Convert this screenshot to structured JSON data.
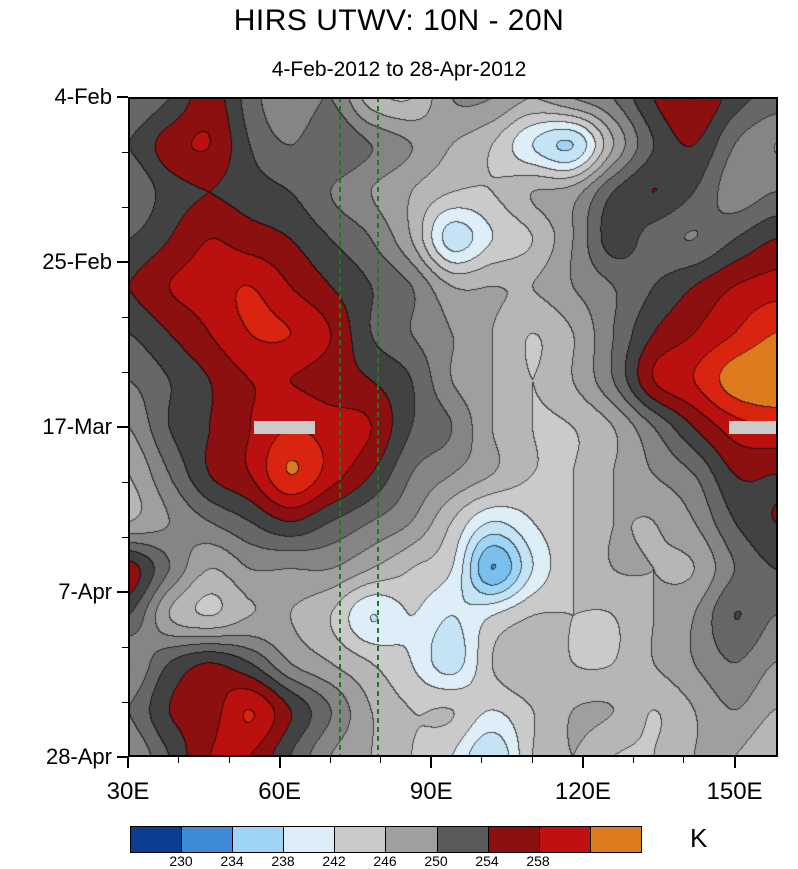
{
  "title": "HIRS UTWV: 10N - 20N",
  "subtitle": "4-Feb-2012 to 28-Apr-2012",
  "unit_label": "K",
  "chart_data": {
    "type": "heatmap",
    "description": "Hovmoller diagram (time vs longitude) of HIRS upper-tropospheric water vapor brightness temperature (K) averaged 10N-20N",
    "x_axis": {
      "tick_labels": [
        "30E",
        "60E",
        "90E",
        "120E",
        "150E"
      ],
      "tick_values": [
        30,
        60,
        90,
        120,
        150
      ],
      "minor_tick_values": [
        40,
        50,
        70,
        80,
        100,
        110,
        130,
        140
      ],
      "range": [
        30,
        158.6
      ]
    },
    "y_axis": {
      "tick_labels": [
        "4-Feb",
        "25-Feb",
        "17-Mar",
        "7-Apr",
        "28-Apr"
      ],
      "tick_days": [
        0,
        21,
        42,
        63,
        84
      ],
      "minor_tick_days": [
        7,
        14,
        28,
        35,
        49,
        56,
        70,
        77
      ],
      "range_days": [
        0,
        84
      ]
    },
    "grid": {
      "lon_start": 30,
      "lon_step": 8,
      "day_start": 0,
      "day_step": 6,
      "values": [
        [
          250,
          252,
          255,
          251,
          248,
          250,
          245,
          244,
          248,
          248,
          246,
          248,
          250,
          254,
          256,
          253,
          251
        ],
        [
          252,
          255,
          256,
          252,
          250,
          252,
          250,
          248,
          246,
          244,
          240,
          238,
          246,
          252,
          254,
          250,
          248
        ],
        [
          250,
          253,
          254,
          253,
          252,
          250,
          248,
          246,
          244,
          244,
          246,
          247,
          252,
          254,
          252,
          249,
          250
        ],
        [
          252,
          254,
          256,
          255,
          254,
          252,
          250,
          246,
          239,
          242,
          244,
          248,
          253,
          251,
          250,
          252,
          254
        ],
        [
          254,
          256,
          257,
          258,
          256,
          254,
          252,
          250,
          246,
          246,
          246,
          248,
          250,
          252,
          254,
          256,
          257
        ],
        [
          252,
          254,
          256,
          258,
          258,
          256,
          252,
          250,
          248,
          246,
          244,
          246,
          250,
          254,
          256,
          258,
          260
        ],
        [
          250,
          252,
          254,
          256,
          256,
          255,
          254,
          252,
          248,
          246,
          244,
          246,
          250,
          256,
          258,
          261,
          262
        ],
        [
          248,
          252,
          254,
          256,
          258,
          257,
          256,
          252,
          250,
          246,
          244,
          244,
          246,
          250,
          254,
          257,
          258
        ],
        [
          246,
          250,
          254,
          256,
          260,
          257,
          254,
          250,
          248,
          246,
          244,
          244,
          246,
          248,
          250,
          254,
          254
        ],
        [
          246,
          248,
          250,
          252,
          254,
          252,
          250,
          248,
          244,
          240,
          242,
          244,
          246,
          246,
          248,
          252,
          254
        ],
        [
          255,
          250,
          246,
          248,
          248,
          248,
          246,
          244,
          242,
          234,
          240,
          244,
          246,
          246,
          246,
          250,
          252
        ],
        [
          252,
          246,
          244,
          246,
          246,
          244,
          240,
          242,
          240,
          242,
          244,
          244,
          244,
          246,
          248,
          252,
          250
        ],
        [
          248,
          252,
          254,
          252,
          248,
          246,
          244,
          242,
          239,
          244,
          246,
          244,
          244,
          246,
          248,
          250,
          248
        ],
        [
          250,
          254,
          255,
          258,
          254,
          250,
          246,
          244,
          244,
          242,
          244,
          246,
          246,
          244,
          246,
          248,
          246
        ],
        [
          248,
          252,
          256,
          256,
          252,
          248,
          246,
          244,
          242,
          238,
          244,
          246,
          244,
          244,
          246,
          246,
          244
        ]
      ]
    },
    "render_levels": [
      230,
      232,
      234,
      236,
      238,
      240,
      242,
      244,
      246,
      248,
      250,
      252,
      254,
      256,
      258,
      260
    ],
    "render_colors": [
      "#0b3d91",
      "#2465be",
      "#3f8ad8",
      "#79c0ee",
      "#9fd4f4",
      "#c4e4f6",
      "#ddeef8",
      "#cacaca",
      "#b6b6b6",
      "#9f9f9f",
      "#858585",
      "#676767",
      "#424242",
      "#8c1010",
      "#bb1010",
      "#d92510",
      "#dd7b1e"
    ],
    "overlays": {
      "dashed_lines_lon": [
        72,
        79.5
      ],
      "dashed_line_color": "#1f7a1f",
      "missing_bars": [
        {
          "day": 42,
          "lon_from": 55,
          "lon_to": 67
        },
        {
          "day": 42,
          "lon_from": 149,
          "lon_to": 158.6
        }
      ],
      "missing_bar_color": "#cbcbcb"
    },
    "colorbar": {
      "labels": [
        "230",
        "234",
        "238",
        "242",
        "246",
        "250",
        "254",
        "258"
      ],
      "colors": [
        "#0b3d91",
        "#3f8ad8",
        "#9fd4f4",
        "#ddeef8",
        "#c9c9c9",
        "#9f9f9f",
        "#5a5a5a",
        "#8c1010",
        "#c01010",
        "#dd7b1e"
      ]
    }
  }
}
